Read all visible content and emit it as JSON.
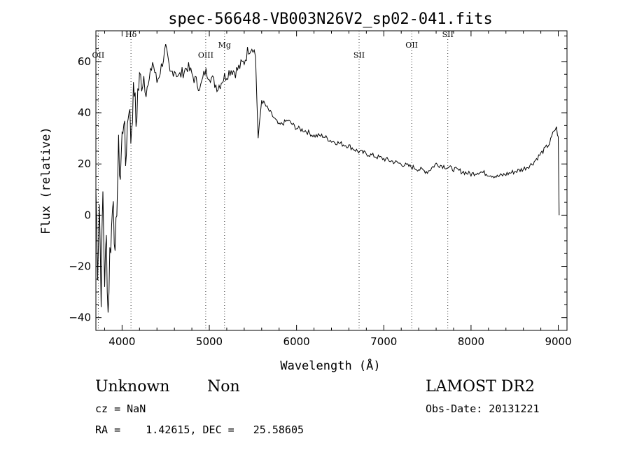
{
  "chart_data": {
    "type": "line",
    "title": "spec-56648-VB003N26V2_sp02-041.fits",
    "xlabel": "Wavelength (Å)",
    "ylabel": "Flux (relative)",
    "xlim": [
      3700,
      9100
    ],
    "ylim": [
      -45,
      72
    ],
    "x_ticks": [
      4000,
      5000,
      6000,
      7000,
      8000,
      9000
    ],
    "y_ticks": [
      -40,
      -20,
      0,
      20,
      40,
      60
    ],
    "x_tick_labels": [
      "4000",
      "5000",
      "6000",
      "7000",
      "8000",
      "9000"
    ],
    "y_tick_labels": [
      "−40",
      "−20",
      "0",
      "20",
      "40",
      "60"
    ],
    "grid": false,
    "line_color": "#000000",
    "line_markers": [
      {
        "label": "OII",
        "wavelength": 3727,
        "label_y": 61.5
      },
      {
        "label": "Hδ",
        "wavelength": 4102,
        "label_y": 69.5
      },
      {
        "label": "OIII",
        "wavelength": 4959,
        "label_y": 61.5
      },
      {
        "label": "Mg",
        "wavelength": 5175,
        "label_y": 65.5
      },
      {
        "label": "SII",
        "wavelength": 6717,
        "label_y": 61.5
      },
      {
        "label": "OII",
        "wavelength": 7320,
        "label_y": 65.5
      },
      {
        "label": "SII",
        "wavelength": 7734,
        "label_y": 69.5
      }
    ],
    "series": [
      {
        "x": [
          3700,
          3720,
          3740,
          3760,
          3780,
          3800,
          3820,
          3840,
          3860,
          3880,
          3900,
          3920,
          3940,
          3960,
          3980,
          4000,
          4020,
          4040,
          4060,
          4080,
          4100,
          4120,
          4140,
          4160,
          4180,
          4200,
          4250,
          4300,
          4350,
          4400,
          4450,
          4500,
          4550,
          4600,
          4650,
          4700,
          4750,
          4800,
          4850,
          4900,
          4950,
          5000,
          5050,
          5100,
          5150,
          5200,
          5250,
          5300,
          5350,
          5400,
          5450,
          5500,
          5530,
          5560,
          5600,
          5700,
          5800,
          5900,
          6000,
          6100,
          6200,
          6300,
          6400,
          6500,
          6600,
          6700,
          6800,
          6900,
          7000,
          7100,
          7200,
          7300,
          7400,
          7500,
          7600,
          7700,
          7800,
          7900,
          8000,
          8100,
          8200,
          8300,
          8400,
          8500,
          8600,
          8700,
          8800,
          8900,
          8950,
          8980,
          9000,
          9010
        ],
        "y": [
          10,
          -20,
          5,
          -30,
          8,
          -25,
          -10,
          -38,
          -15,
          -5,
          10,
          -20,
          5,
          25,
          15,
          30,
          40,
          20,
          35,
          45,
          30,
          42,
          50,
          35,
          48,
          52,
          55,
          50,
          60,
          52,
          58,
          65,
          55,
          57,
          54,
          56,
          58,
          55,
          52,
          50,
          56,
          55,
          52,
          50,
          53,
          55,
          57,
          56,
          58,
          60,
          65,
          66,
          62,
          30,
          45,
          40,
          35,
          37,
          34,
          33,
          31,
          31,
          29,
          28,
          27,
          25,
          24,
          23,
          22,
          21,
          20,
          19,
          18,
          17,
          20,
          19,
          18,
          17,
          16,
          17,
          16,
          15,
          16,
          17,
          18,
          20,
          24,
          28,
          33,
          34,
          30,
          0
        ]
      }
    ]
  },
  "footer": {
    "class_label": "Unknown",
    "subclass_label": "Non",
    "survey_label": "LAMOST DR2",
    "cz_text": "cz = NaN",
    "obs_date_text": "Obs-Date: 20131221",
    "coords_text": "RA =    1.42615, DEC =   25.58605"
  }
}
